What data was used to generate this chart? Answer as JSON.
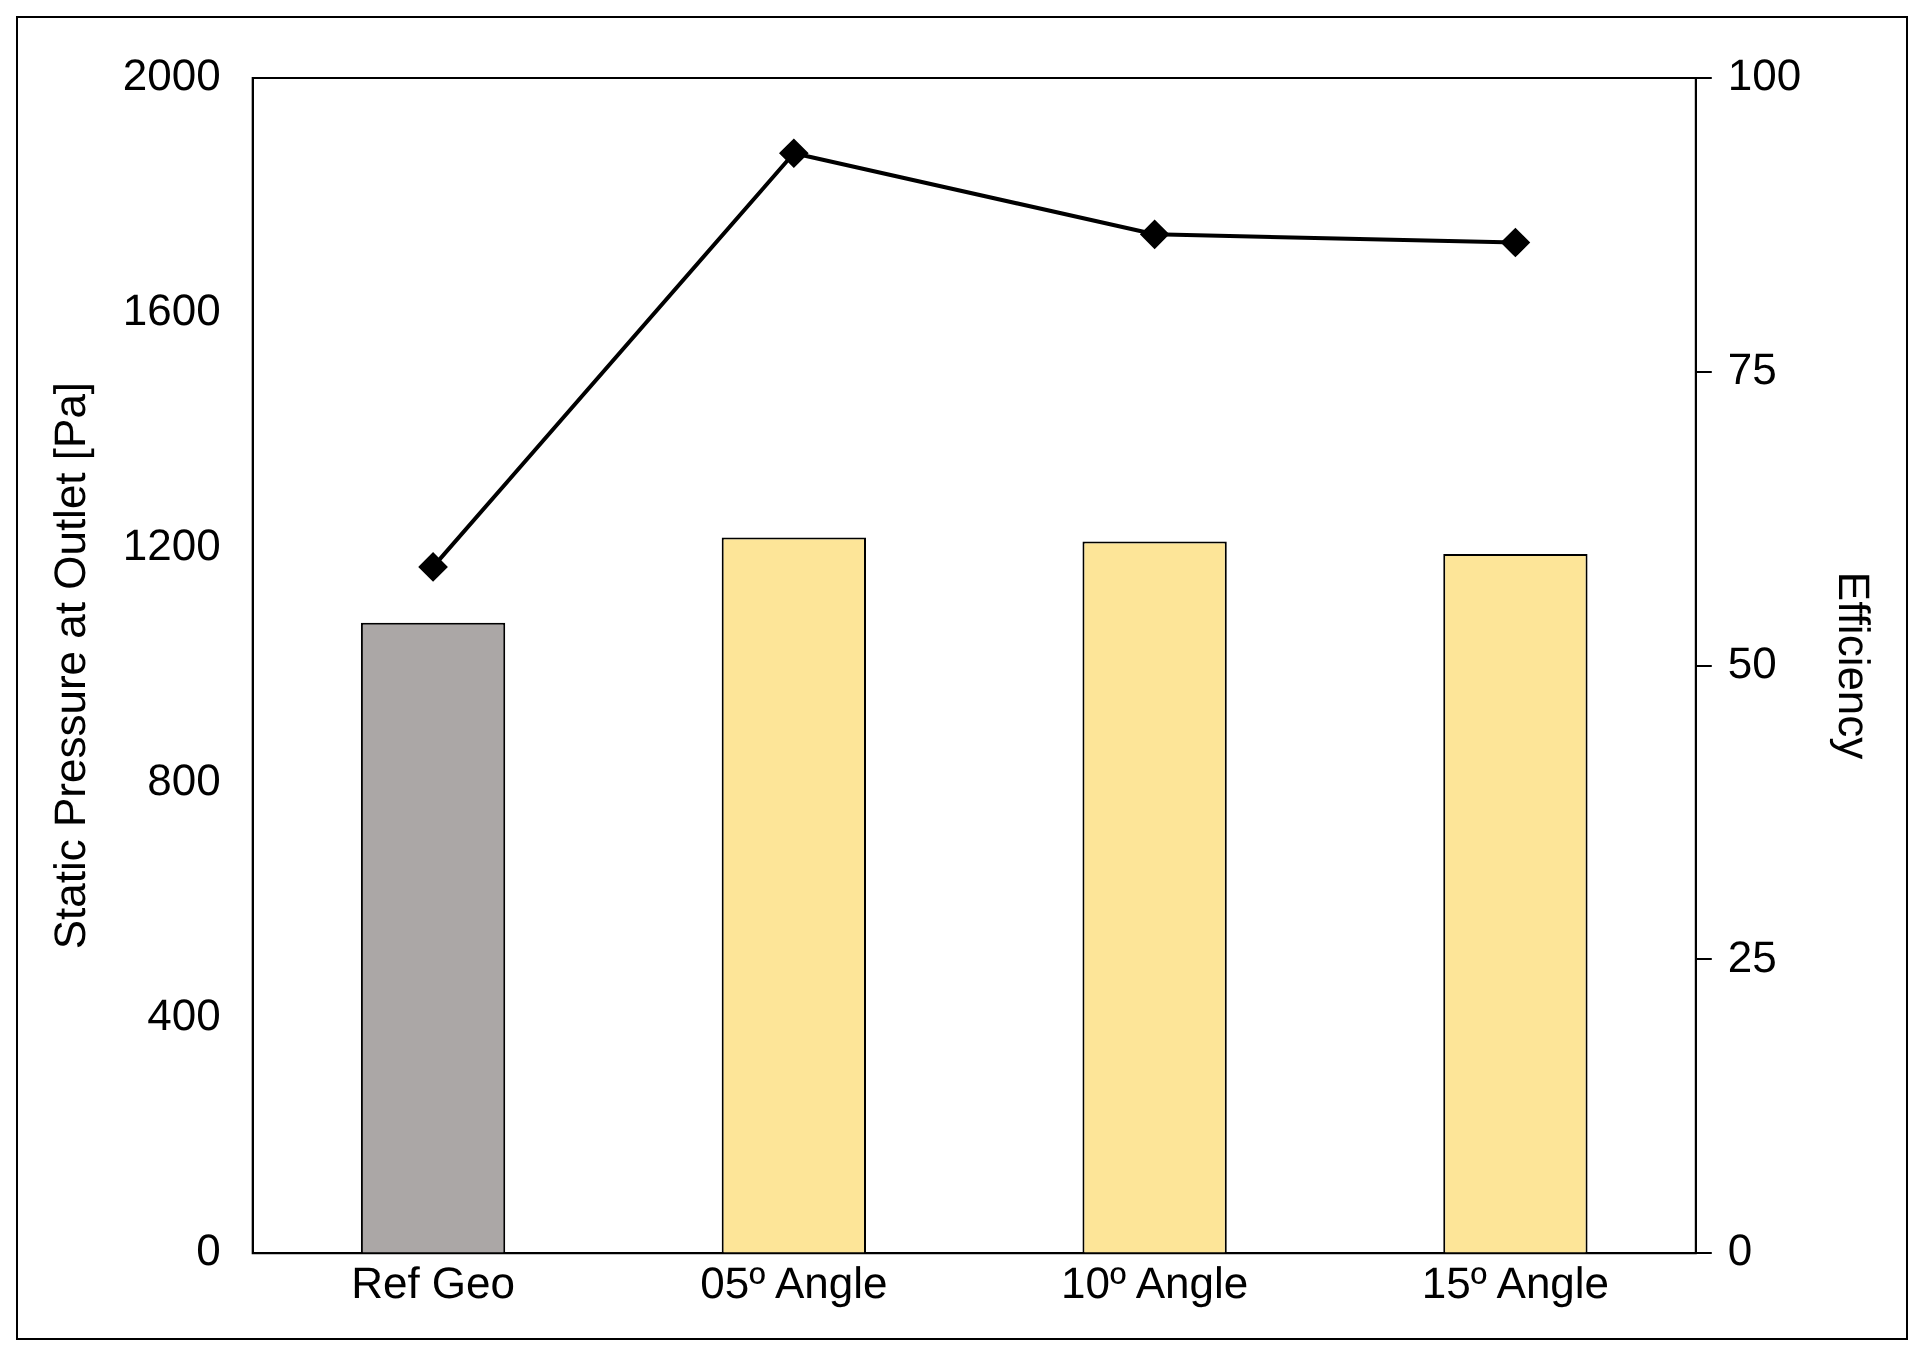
{
  "chart_data": {
    "type": "bar",
    "ylabel": "Static Pressure at Outlet [Pa]",
    "y2label": "Efficiency",
    "categories": [
      "Ref Geo",
      "05º Angle",
      "10º Angle",
      "15º Angle"
    ],
    "series": [
      {
        "colors": [
          "#aba7a6",
          "#fde598",
          "#fde598",
          "#fde598"
        ],
        "values": [
          1073,
          1218,
          1211,
          1190
        ]
      },
      {
        "type": "line",
        "axis": "y2",
        "color": "#000000",
        "marker": "diamond",
        "values": [
          58.4,
          93.6,
          86.7,
          86.0
        ]
      }
    ],
    "ylim": [
      0,
      2000
    ],
    "yticks": [
      0,
      400,
      800,
      1200,
      1600,
      2000
    ],
    "y2lim": [
      0,
      100
    ],
    "y2ticks": [
      0,
      25,
      50,
      75,
      100
    ],
    "grid": false,
    "legend": false
  }
}
